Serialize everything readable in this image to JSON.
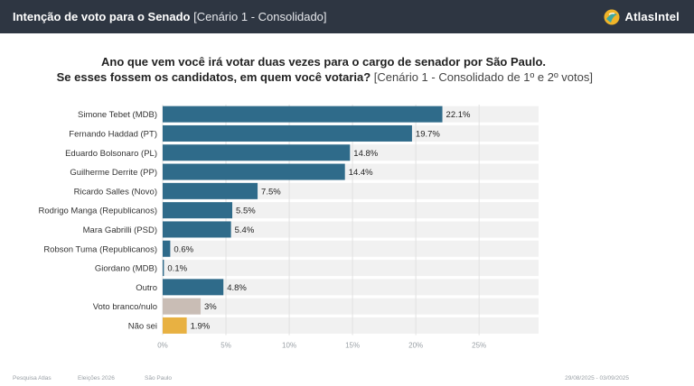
{
  "header": {
    "title_bold": "Intenção de voto para o Senado",
    "title_rest": "[Cenário 1 - Consolidado]",
    "brand": "AtlasIntel",
    "brand_color": "#f0b429",
    "bar_color": "#2e3642"
  },
  "question": {
    "line1": "Ano que vem você irá votar duas vezes para o cargo de senador por São Paulo.",
    "line2_bold": "Se esses fossem os candidatos, em quem você votaria?",
    "line2_rest": "[Cenário 1 - Consolidado de 1º e 2º votos]"
  },
  "chart_data": {
    "type": "bar",
    "orientation": "horizontal",
    "categories": [
      "Simone Tebet (MDB)",
      "Fernando Haddad (PT)",
      "Eduardo Bolsonaro (PL)",
      "Guilherme Derrite (PP)",
      "Ricardo Salles (Novo)",
      "Rodrigo Manga (Republicanos)",
      "Mara Gabrilli (PSD)",
      "Robson Tuma (Republicanos)",
      "Giordano (MDB)",
      "Outro",
      "Voto branco/nulo",
      "Não sei"
    ],
    "values": [
      22.1,
      19.7,
      14.8,
      14.4,
      7.5,
      5.5,
      5.4,
      0.6,
      0.1,
      4.8,
      3,
      1.9
    ],
    "value_labels": [
      "22.1%",
      "19.7%",
      "14.8%",
      "14.4%",
      "7.5%",
      "5.5%",
      "5.4%",
      "0.6%",
      "0.1%",
      "4.8%",
      "3%",
      "1.9%"
    ],
    "colors": [
      "#2f6b8a",
      "#2f6b8a",
      "#2f6b8a",
      "#2f6b8a",
      "#2f6b8a",
      "#2f6b8a",
      "#2f6b8a",
      "#2f6b8a",
      "#2f6b8a",
      "#2f6b8a",
      "#c9bdb5",
      "#e8b142"
    ],
    "track_color": "#f1f1f1",
    "xlim": [
      0,
      29.7
    ],
    "xticks": [
      0,
      5,
      10,
      15,
      20,
      25
    ],
    "xtick_labels": [
      "0%",
      "5%",
      "10%",
      "15%",
      "20%",
      "25%"
    ],
    "grid": true
  },
  "footer": {
    "left1": "Pesquisa Atlas",
    "left2": "Eleições 2026",
    "left3": "São Paulo",
    "right": "29/08/2025 - 03/09/2025"
  }
}
